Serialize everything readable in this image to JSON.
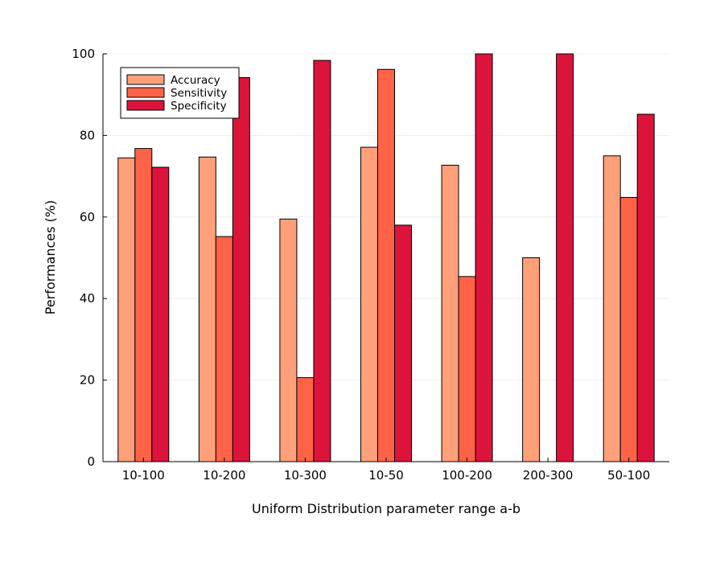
{
  "chart_data": {
    "type": "bar",
    "title": "",
    "xlabel": "Uniform Distribution parameter range a-b",
    "ylabel": "Performances (%)",
    "ylim": [
      0,
      100
    ],
    "yticks": [
      "0",
      "20",
      "40",
      "60",
      "80",
      "100"
    ],
    "grid": true,
    "legend_position": "top-left",
    "categories": [
      "10-100",
      "10-200",
      "10-300",
      "10-50",
      "100-200",
      "200-300",
      "50-100"
    ],
    "series": [
      {
        "name": "Accuracy",
        "color": "#FFA07A",
        "values": [
          74.5,
          74.7,
          59.5,
          77.1,
          72.7,
          50.0,
          75.0
        ]
      },
      {
        "name": "Sensitivity",
        "color": "#FF6347",
        "values": [
          76.8,
          55.2,
          20.6,
          96.2,
          45.4,
          0.0,
          64.8
        ]
      },
      {
        "name": "Specificity",
        "color": "#DC143C",
        "values": [
          72.2,
          94.2,
          98.4,
          58.0,
          100.0,
          100.0,
          85.2
        ]
      }
    ]
  }
}
